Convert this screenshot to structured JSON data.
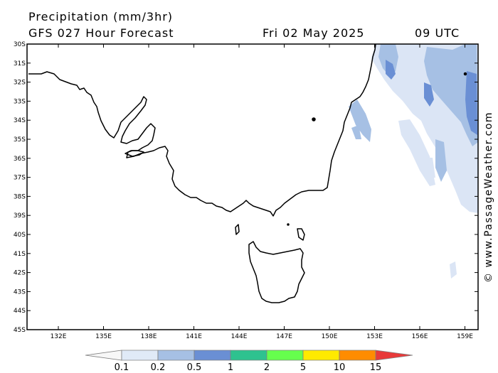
{
  "header": {
    "title": "Precipitation (mm/3hr)",
    "subtitle": "GFS 027 Hour Forecast",
    "date": "Fri 02 May 2025",
    "time": "09 UTC"
  },
  "credit": "© www.PassageWeather.com",
  "map": {
    "lat_labels": [
      "30S",
      "31S",
      "32S",
      "33S",
      "34S",
      "35S",
      "36S",
      "37S",
      "38S",
      "39S",
      "40S",
      "41S",
      "42S",
      "43S",
      "44S",
      "45S"
    ],
    "lon_labels": [
      "132E",
      "135E",
      "138E",
      "141E",
      "144E",
      "147E",
      "150E",
      "153E",
      "156E",
      "159E"
    ],
    "coast_color": "#000000",
    "frame_color": "#000000"
  },
  "legend": {
    "thresholds": [
      "0.1",
      "0.2",
      "0.5",
      "1",
      "2",
      "5",
      "10",
      "15"
    ],
    "colors": [
      "#f7f7f7",
      "#e0eaf7",
      "#a6c0e4",
      "#6a8fd4",
      "#2ec28f",
      "#66ff4d",
      "#ffea00",
      "#ff8c00",
      "#e83a3a"
    ]
  }
}
